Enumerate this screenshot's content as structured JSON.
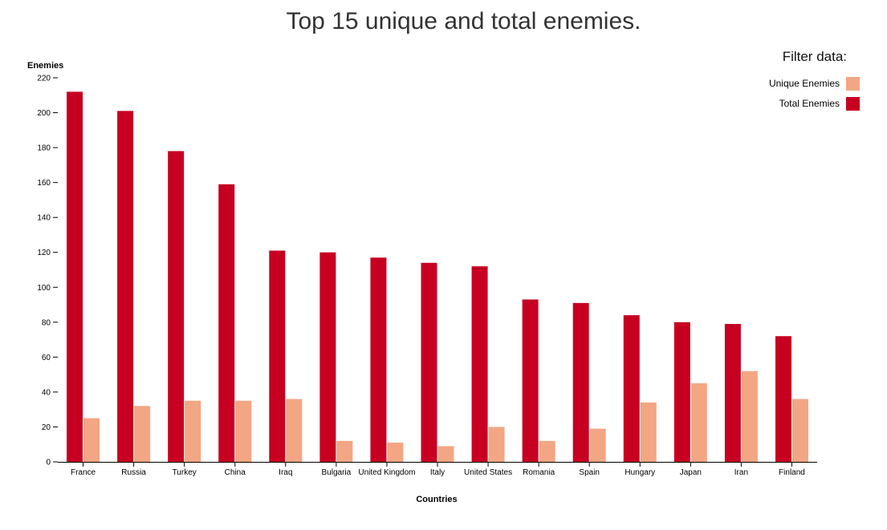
{
  "chart_data": {
    "type": "bar",
    "title": "Top 15 unique and total enemies.",
    "xlabel": "Countries",
    "ylabel": "Enemies",
    "ylim": [
      0,
      220
    ],
    "yticks": [
      0,
      20,
      40,
      60,
      80,
      100,
      120,
      140,
      160,
      180,
      200,
      220
    ],
    "grid": false,
    "legend_title": "Filter data:",
    "legend_position": "top-right",
    "categories": [
      "France",
      "Russia",
      "Turkey",
      "China",
      "Iraq",
      "Bulgaria",
      "United Kingdom",
      "Italy",
      "United States",
      "Romania",
      "Spain",
      "Hungary",
      "Japan",
      "Iran",
      "Finland"
    ],
    "series": [
      {
        "name": "Total Enemies",
        "color": "#c70021",
        "values": [
          212,
          201,
          178,
          159,
          121,
          120,
          117,
          114,
          112,
          93,
          91,
          84,
          80,
          79,
          72
        ]
      },
      {
        "name": "Unique Enemies",
        "color": "#f2a683",
        "values": [
          25,
          32,
          35,
          35,
          36,
          12,
          11,
          9,
          20,
          12,
          19,
          34,
          45,
          52,
          36
        ]
      }
    ],
    "legend": [
      {
        "name": "Unique Enemies",
        "color": "#f2a683"
      },
      {
        "name": "Total Enemies",
        "color": "#c70021"
      }
    ]
  }
}
